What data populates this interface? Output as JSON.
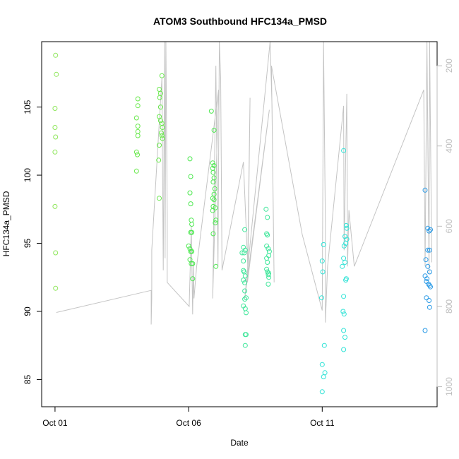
{
  "chart_data": {
    "type": "scatter",
    "title": "ATOM3 Southbound HFC134a_PMSD",
    "xlabel": "Date",
    "ylabel": "HFC134a_PMSD",
    "x_ticks": [
      {
        "label": "Oct 01",
        "day": 1
      },
      {
        "label": "Oct 06",
        "day": 6
      },
      {
        "label": "Oct 11",
        "day": 11
      }
    ],
    "xlim": [
      0.5,
      15.3
    ],
    "y_ticks": [
      85,
      90,
      95,
      100,
      105
    ],
    "ylim": [
      83,
      109.8
    ],
    "y2_ticks": [
      200,
      400,
      600,
      800,
      1000
    ],
    "y2lim": [
      1050,
      140
    ],
    "grid": false,
    "colors": {
      "line": "#c4c4c4",
      "right_axis": "#bdbdbd",
      "axis": "#000000"
    },
    "point_groups": [
      {
        "color": "#8ee65a",
        "points": [
          [
            1.02,
            108.8
          ],
          [
            1.05,
            107.4
          ],
          [
            1.0,
            104.9
          ],
          [
            1.0,
            103.5
          ],
          [
            1.02,
            102.8
          ],
          [
            1.0,
            101.7
          ],
          [
            1.0,
            97.7
          ],
          [
            1.02,
            94.3
          ],
          [
            1.02,
            91.7
          ]
        ]
      },
      {
        "color": "#67e84a",
        "points": [
          [
            4.1,
            105.6
          ],
          [
            4.1,
            105.1
          ],
          [
            4.05,
            104.2
          ],
          [
            4.1,
            103.6
          ],
          [
            4.1,
            103.2
          ],
          [
            4.1,
            102.9
          ],
          [
            4.05,
            101.7
          ],
          [
            4.08,
            101.5
          ],
          [
            4.05,
            100.3
          ],
          [
            4.9,
            106.3
          ],
          [
            4.95,
            106.0
          ],
          [
            4.92,
            105.7
          ],
          [
            5.0,
            107.3
          ],
          [
            4.95,
            105.0
          ],
          [
            4.9,
            104.3
          ],
          [
            4.95,
            104.0
          ],
          [
            5.0,
            103.8
          ],
          [
            5.02,
            103.5
          ],
          [
            4.98,
            103.1
          ],
          [
            5.0,
            102.9
          ],
          [
            5.02,
            102.7
          ],
          [
            4.9,
            102.2
          ],
          [
            4.88,
            101.1
          ],
          [
            4.9,
            98.3
          ]
        ]
      },
      {
        "color": "#4ce84f",
        "points": [
          [
            6.05,
            101.2
          ],
          [
            6.08,
            99.9
          ],
          [
            6.05,
            98.7
          ],
          [
            6.08,
            97.9
          ],
          [
            6.1,
            96.7
          ],
          [
            6.12,
            96.4
          ],
          [
            6.12,
            95.8
          ],
          [
            6.08,
            95.8
          ],
          [
            6.0,
            94.8
          ],
          [
            6.05,
            94.6
          ],
          [
            6.08,
            94.4
          ],
          [
            6.12,
            94.4
          ],
          [
            6.05,
            93.8
          ],
          [
            6.1,
            93.5
          ],
          [
            6.15,
            93.5
          ],
          [
            6.15,
            92.4
          ],
          [
            6.85,
            104.7
          ],
          [
            6.9,
            100.9
          ],
          [
            6.95,
            100.7
          ],
          [
            6.9,
            100.5
          ],
          [
            6.92,
            100.2
          ],
          [
            6.95,
            99.8
          ],
          [
            6.92,
            99.5
          ],
          [
            6.98,
            99.0
          ],
          [
            6.95,
            98.6
          ],
          [
            6.9,
            98.3
          ],
          [
            6.95,
            98.2
          ],
          [
            6.92,
            97.7
          ],
          [
            6.9,
            97.4
          ],
          [
            7.0,
            97.6
          ],
          [
            7.02,
            96.7
          ],
          [
            7.0,
            96.5
          ],
          [
            6.92,
            95.7
          ],
          [
            6.95,
            103.3
          ],
          [
            7.02,
            93.3
          ]
        ]
      },
      {
        "color": "#3ee69a",
        "points": [
          [
            8.1,
            96.0
          ],
          [
            8.05,
            94.7
          ],
          [
            8.12,
            94.5
          ],
          [
            8.08,
            94.3
          ],
          [
            8.0,
            94.3
          ],
          [
            8.05,
            93.7
          ],
          [
            8.05,
            93.0
          ],
          [
            8.08,
            92.9
          ],
          [
            8.12,
            92.6
          ],
          [
            8.05,
            92.3
          ],
          [
            8.1,
            92.1
          ],
          [
            8.1,
            91.5
          ],
          [
            8.15,
            91.0
          ],
          [
            8.1,
            90.9
          ],
          [
            8.05,
            90.4
          ],
          [
            8.12,
            90.2
          ],
          [
            8.15,
            89.9
          ],
          [
            8.12,
            88.3
          ],
          [
            8.15,
            88.3
          ],
          [
            8.12,
            87.5
          ],
          [
            8.9,
            97.5
          ],
          [
            8.95,
            96.9
          ],
          [
            8.92,
            95.7
          ],
          [
            8.95,
            95.6
          ],
          [
            8.92,
            94.8
          ],
          [
            8.98,
            94.6
          ],
          [
            9.02,
            94.4
          ],
          [
            9.0,
            94.1
          ],
          [
            8.92,
            93.9
          ],
          [
            8.95,
            93.6
          ],
          [
            8.92,
            93.1
          ],
          [
            8.95,
            92.9
          ],
          [
            9.0,
            92.8
          ],
          [
            8.98,
            92.7
          ],
          [
            9.0,
            92.5
          ],
          [
            8.98,
            92.0
          ]
        ]
      },
      {
        "color": "#2ee3d6",
        "points": [
          [
            11.05,
            94.9
          ],
          [
            11.0,
            93.7
          ],
          [
            11.02,
            92.9
          ],
          [
            10.98,
            91.0
          ],
          [
            11.08,
            87.5
          ],
          [
            11.0,
            86.1
          ],
          [
            11.1,
            85.5
          ],
          [
            11.05,
            85.2
          ],
          [
            11.0,
            84.1
          ],
          [
            11.8,
            101.8
          ],
          [
            11.9,
            96.3
          ],
          [
            11.92,
            96.1
          ],
          [
            11.85,
            95.5
          ],
          [
            11.92,
            95.3
          ],
          [
            11.88,
            95.0
          ],
          [
            11.82,
            94.8
          ],
          [
            11.8,
            93.9
          ],
          [
            11.85,
            93.6
          ],
          [
            11.75,
            93.3
          ],
          [
            11.9,
            92.4
          ],
          [
            11.88,
            92.3
          ],
          [
            11.8,
            91.1
          ],
          [
            11.78,
            90.0
          ],
          [
            11.82,
            89.8
          ],
          [
            11.8,
            88.6
          ],
          [
            11.85,
            88.1
          ],
          [
            11.8,
            87.2
          ]
        ]
      },
      {
        "color": "#2a9ae6",
        "points": [
          [
            14.85,
            98.9
          ],
          [
            14.95,
            96.1
          ],
          [
            15.0,
            95.9
          ],
          [
            15.05,
            96.0
          ],
          [
            15.02,
            94.5
          ],
          [
            14.95,
            94.5
          ],
          [
            14.88,
            93.8
          ],
          [
            14.95,
            93.3
          ],
          [
            15.02,
            92.9
          ],
          [
            14.85,
            92.6
          ],
          [
            14.92,
            92.4
          ],
          [
            14.9,
            92.2
          ],
          [
            14.98,
            92.0
          ],
          [
            15.02,
            91.9
          ],
          [
            15.05,
            91.8
          ],
          [
            14.9,
            91.0
          ],
          [
            15.0,
            90.8
          ],
          [
            15.02,
            90.3
          ],
          [
            14.85,
            88.6
          ]
        ]
      }
    ],
    "line_y2": [
      [
        1.05,
        815
      ],
      [
        4.6,
        760
      ],
      [
        4.6,
        845
      ],
      [
        4.62,
        780
      ],
      [
        4.62,
        660
      ],
      [
        5.0,
        230
      ],
      [
        5.05,
        710
      ],
      [
        5.1,
        140
      ],
      [
        5.12,
        680
      ],
      [
        5.15,
        140
      ],
      [
        5.2,
        570
      ],
      [
        5.2,
        740
      ],
      [
        6.02,
        800
      ],
      [
        6.1,
        600
      ],
      [
        6.15,
        820
      ],
      [
        6.18,
        690
      ],
      [
        6.2,
        780
      ],
      [
        6.3,
        700
      ],
      [
        7.12,
        260
      ],
      [
        6.9,
        780
      ],
      [
        7.02,
        200
      ],
      [
        7.1,
        700
      ],
      [
        7.15,
        140
      ],
      [
        7.2,
        230
      ],
      [
        7.25,
        710
      ],
      [
        8.05,
        440
      ],
      [
        8.22,
        710
      ],
      [
        8.3,
        280
      ],
      [
        8.2,
        740
      ],
      [
        9.02,
        310
      ],
      [
        8.1,
        780
      ],
      [
        9.05,
        140
      ],
      [
        9.12,
        300
      ],
      [
        9.2,
        740
      ],
      [
        9.1,
        200
      ],
      [
        10.25,
        620
      ],
      [
        11.0,
        810
      ],
      [
        11.05,
        140
      ],
      [
        11.12,
        600
      ],
      [
        11.12,
        840
      ],
      [
        11.2,
        700
      ],
      [
        11.8,
        300
      ],
      [
        11.82,
        660
      ],
      [
        11.92,
        270
      ],
      [
        11.95,
        700
      ],
      [
        12.0,
        560
      ],
      [
        12.2,
        700
      ],
      [
        14.8,
        260
      ],
      [
        14.85,
        700
      ],
      [
        14.92,
        140
      ],
      [
        15.0,
        720
      ],
      [
        15.02,
        140
      ],
      [
        15.1,
        690
      ]
    ]
  }
}
